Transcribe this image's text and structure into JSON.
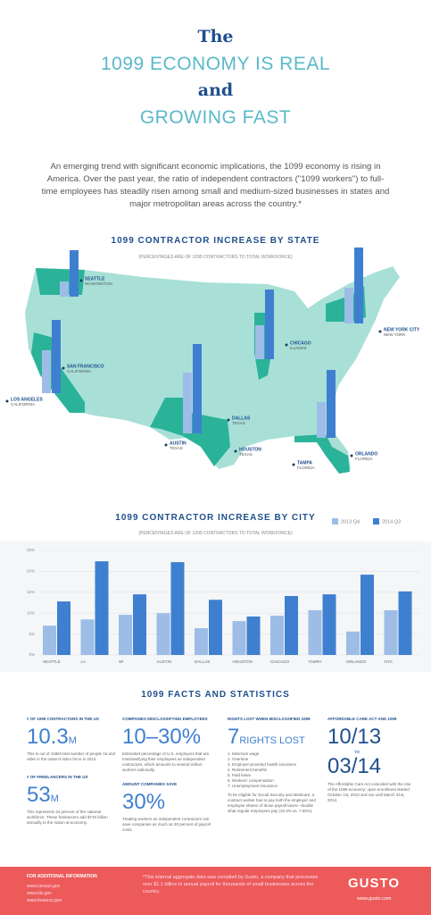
{
  "header": {
    "line1": "The",
    "line2": "1099 ECONOMY IS REAL",
    "line3": "and",
    "line4": "GROWING FAST",
    "intro": "An emerging trend with significant economic implications, the 1099 economy is rising in America. Over the past year, the ratio of independent contractors (\"1099 workers\") to full-time employees has steadily risen among small and medium-sized businesses in states and major metropolitan areas across the country.*"
  },
  "map": {
    "title": "1099 CONTRACTOR INCREASE BY STATE",
    "subtitle": "(PERCENTAGES ARE OF 1099 CONTRACTORS TO TOTAL WORKFORCE)",
    "labels": [
      {
        "city": "SEATTLE",
        "state": "WASHINGTON"
      },
      {
        "city": "SAN FRANCISCO",
        "state": "CALIFORNIA"
      },
      {
        "city": "LOS ANGELES",
        "state": "CALIFORNIA"
      },
      {
        "city": "CHICAGO",
        "state": "ILLINOIS"
      },
      {
        "city": "NEW YORK CITY",
        "state": "NEW YORK"
      },
      {
        "city": "DALLAS",
        "state": "TEXAS"
      },
      {
        "city": "AUSTIN",
        "state": "TEXAS"
      },
      {
        "city": "HOUSTON",
        "state": "TEXAS"
      },
      {
        "city": "ORLANDO",
        "state": "FLORIDA"
      },
      {
        "city": "TAMPA",
        "state": "FLORIDA"
      }
    ],
    "bars": [
      {
        "values": [
          17,
          52
        ]
      },
      {
        "values": [
          48,
          82
        ]
      },
      {
        "values": [
          38,
          78
        ]
      },
      {
        "values": [
          40,
          85
        ]
      },
      {
        "values": [
          68,
          100
        ]
      },
      {
        "values": [
          40,
          76
        ]
      }
    ]
  },
  "chart_data": {
    "type": "bar",
    "title": "1099 CONTRACTOR INCREASE BY CITY",
    "subtitle": "(PERCENTAGES ARE OF 1099 CONTRACTORS TO TOTAL WORKFORCE)",
    "categories": [
      "SEATTLE",
      "LA",
      "SF",
      "AUSTIN",
      "DALLAS",
      "HOUSTON",
      "CHICAGO",
      "TAMPA",
      "ORLANDO",
      "NYC"
    ],
    "series": [
      {
        "name": "2013 Q4",
        "color": "#9dbde6",
        "values": [
          7.0,
          8.5,
          9.6,
          10.0,
          6.4,
          8.1,
          9.4,
          10.7,
          5.6,
          10.7
        ]
      },
      {
        "name": "2014 Q3",
        "color": "#3f7fd0",
        "values": [
          12.8,
          22.4,
          14.5,
          22.2,
          13.2,
          9.2,
          14.1,
          14.5,
          19.2,
          15.2
        ]
      }
    ],
    "ylim": [
      0,
      25
    ],
    "yticks": [
      {
        "value": 0,
        "label": "0%"
      },
      {
        "value": 5,
        "label": "5%"
      },
      {
        "value": 10,
        "label": "10%"
      },
      {
        "value": 15,
        "label": "15%"
      },
      {
        "value": 20,
        "label": "20%"
      },
      {
        "value": 25,
        "label": "25%"
      }
    ],
    "grid": true,
    "legend": "top-right"
  },
  "facts": {
    "title": "1099 FACTS AND STATISTICS",
    "col1": {
      "h1": "# OF 1099 CONTRACTORS IN THE US",
      "big1": "10.3",
      "unit1": "M",
      "p1": "This is out of 158M total number of people 16 and older in the nation's labor force in 2014.",
      "h2": "# OF FREELANCERS IN THE US",
      "big2": "53",
      "unit2": "M",
      "p2": "This represents 34 percent of the national workforce. These freelancers add $715 billion annually to the nation al economy."
    },
    "col2": {
      "h1": "COMPANIES MISCLASSIFYING EMPLOYEES",
      "big1": "10–30%",
      "p1": "Estimated percentage of U.S. employers that are misclassifying their employees as independent contractors, which amounts to several million workers nationally.",
      "h2": "AMOUNT COMPANIES SAVE",
      "big2": "30%",
      "p2": "Treating workers as independent contractors can save companies as much as 30 percent of payroll costs."
    },
    "col3": {
      "h1": "RIGHTS LOST WHEN MISCLASSIFIED 1099",
      "big": "7",
      "unit": "RIGHTS LOST",
      "list": [
        "1. Minimum wage",
        "2. Overtime",
        "3. Employer-provided health insurance",
        "4. Retirement benefits",
        "5. Paid leave",
        "6. Workers' compensation",
        "7. Unemployment insurance"
      ],
      "p": "To be eligible for Social Security and Medicare, a contract worker has to pay both the employer and employee shares of those payroll taxes—double what regular employees pay (15.3% vs. 7.65%)."
    },
    "col4": {
      "h1": "AFFORDABLE CARE ACT AND 1099",
      "big1": "10/13",
      "to": "TO",
      "big2": "03/14",
      "p": "The Affordable Care Act coincided with the rise of the 1099 economy; open enrollment started October 1st, 2013 and ran until March 31st, 2014."
    }
  },
  "footer": {
    "title": "FOR ADDITIONAL INFORMATION",
    "links": [
      "www.census.gov",
      "www.bls.gov",
      "www.treasury.gov"
    ],
    "note": "*This internal aggregate data was compiled by Gusto, a company that processes over $1.1 billion in annual payroll for thousands of small businesses across the country.",
    "brand": "GUSTO",
    "site": "www.gusto.com"
  }
}
